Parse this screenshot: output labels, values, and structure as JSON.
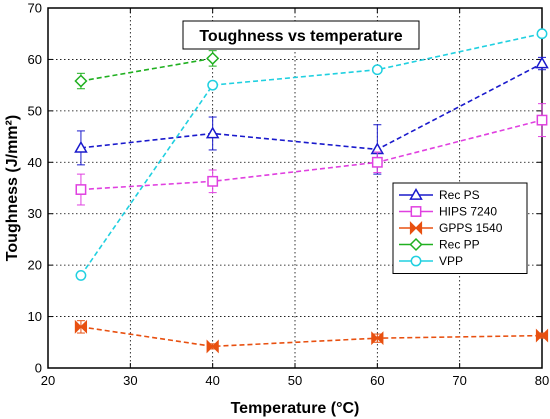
{
  "chart_data": {
    "type": "line",
    "title": "Toughness vs temperature",
    "xlabel": "Temperature (°C)",
    "ylabel": "Toughness (J/mm²)",
    "xlim": [
      20,
      80
    ],
    "ylim": [
      0,
      70
    ],
    "xticks": [
      20,
      30,
      40,
      50,
      60,
      70,
      80
    ],
    "yticks": [
      0,
      10,
      20,
      30,
      40,
      50,
      60,
      70
    ],
    "grid": true,
    "legend_position": "right",
    "series": [
      {
        "name": "Rec PS",
        "color": "#1a1acc",
        "marker": "triangle",
        "points": [
          {
            "x": 24,
            "y": 42.8,
            "err": 3.3
          },
          {
            "x": 40,
            "y": 45.6,
            "err": 3.2
          },
          {
            "x": 60,
            "y": 42.5,
            "err": 4.8
          },
          {
            "x": 80,
            "y": 59.2,
            "err": 1.2
          }
        ]
      },
      {
        "name": "HIPS 7240",
        "color": "#e040e0",
        "marker": "square",
        "points": [
          {
            "x": 24,
            "y": 34.7,
            "err": 3.0
          },
          {
            "x": 40,
            "y": 36.3,
            "err": 2.2
          },
          {
            "x": 60,
            "y": 40.0,
            "err": 2.0
          },
          {
            "x": 80,
            "y": 48.2,
            "err": 3.2
          }
        ]
      },
      {
        "name": "GPPS 1540",
        "color": "#e85010",
        "marker": "bowtie",
        "points": [
          {
            "x": 24,
            "y": 8.0,
            "err": 1.2
          },
          {
            "x": 40,
            "y": 4.2,
            "err": 0.5
          },
          {
            "x": 60,
            "y": 5.8,
            "err": 0.8
          },
          {
            "x": 80,
            "y": 6.3,
            "err": 0.5
          }
        ]
      },
      {
        "name": "Rec PP",
        "color": "#20b020",
        "marker": "diamond",
        "points": [
          {
            "x": 24,
            "y": 55.8,
            "err": 1.5
          },
          {
            "x": 40,
            "y": 60.2,
            "err": 1.5
          }
        ]
      },
      {
        "name": "VPP",
        "color": "#20d0e0",
        "marker": "circle",
        "points": [
          {
            "x": 24,
            "y": 18.0,
            "err": 0
          },
          {
            "x": 40,
            "y": 55.0,
            "err": 0
          },
          {
            "x": 60,
            "y": 58.0,
            "err": 0
          },
          {
            "x": 80,
            "y": 65.0,
            "err": 0
          }
        ]
      }
    ]
  }
}
